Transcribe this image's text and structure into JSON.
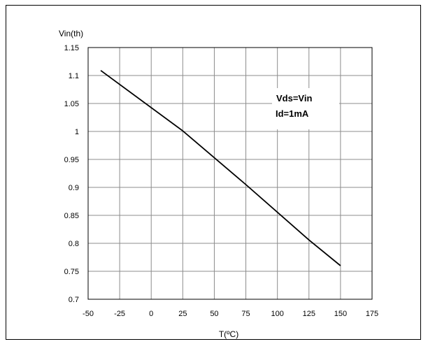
{
  "chart_data": {
    "type": "line",
    "title": "",
    "xlabel": "T(ºC)",
    "ylabel": "Vin(th)",
    "xlim": [
      -50,
      175
    ],
    "ylim": [
      0.7,
      1.15
    ],
    "x_ticks": [
      "-50",
      "-25",
      "0",
      "25",
      "50",
      "75",
      "100",
      "125",
      "150",
      "175"
    ],
    "y_ticks": [
      "1.15",
      "1.1",
      "1.05",
      "1",
      "0.95",
      "0.9",
      "0.85",
      "0.8",
      "0.75",
      "0.7"
    ],
    "grid": true,
    "series": [
      {
        "color": "#000000",
        "x": [
          -40,
          25,
          75,
          125,
          150
        ],
        "y": [
          1.109,
          1.001,
          0.905,
          0.806,
          0.76
        ]
      }
    ],
    "annotation": {
      "lines": [
        "Vds=Vin",
        "Id=1mA"
      ]
    }
  }
}
